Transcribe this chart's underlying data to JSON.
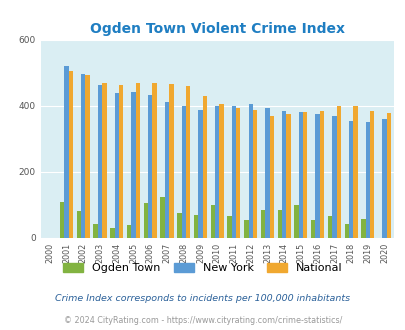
{
  "title": "Ogden Town Violent Crime Index",
  "years": [
    2000,
    2001,
    2002,
    2003,
    2004,
    2005,
    2006,
    2007,
    2008,
    2009,
    2010,
    2011,
    2012,
    2013,
    2014,
    2015,
    2016,
    2017,
    2018,
    2019,
    2020
  ],
  "ogden_town": [
    0,
    108,
    80,
    42,
    28,
    38,
    105,
    122,
    75,
    70,
    98,
    65,
    52,
    85,
    85,
    100,
    52,
    65,
    40,
    55,
    0
  ],
  "new_york": [
    0,
    520,
    495,
    462,
    437,
    442,
    432,
    410,
    398,
    388,
    398,
    398,
    405,
    392,
    384,
    380,
    375,
    370,
    352,
    350,
    360
  ],
  "national": [
    0,
    506,
    494,
    470,
    463,
    469,
    469,
    466,
    458,
    430,
    405,
    392,
    387,
    368,
    376,
    381,
    383,
    399,
    398,
    383,
    379
  ],
  "ogden_color": "#82b341",
  "ny_color": "#5b9bd5",
  "national_color": "#f0a830",
  "bg_color": "#daeef3",
  "ylim": [
    0,
    600
  ],
  "yticks": [
    0,
    200,
    400,
    600
  ],
  "title_color": "#1f7ec2",
  "title_fontsize": 10,
  "legend_fontsize": 8,
  "footnote1": "Crime Index corresponds to incidents per 100,000 inhabitants",
  "footnote2": "© 2024 CityRating.com - https://www.cityrating.com/crime-statistics/",
  "footnote1_color": "#2a6099",
  "footnote2_color": "#999999"
}
